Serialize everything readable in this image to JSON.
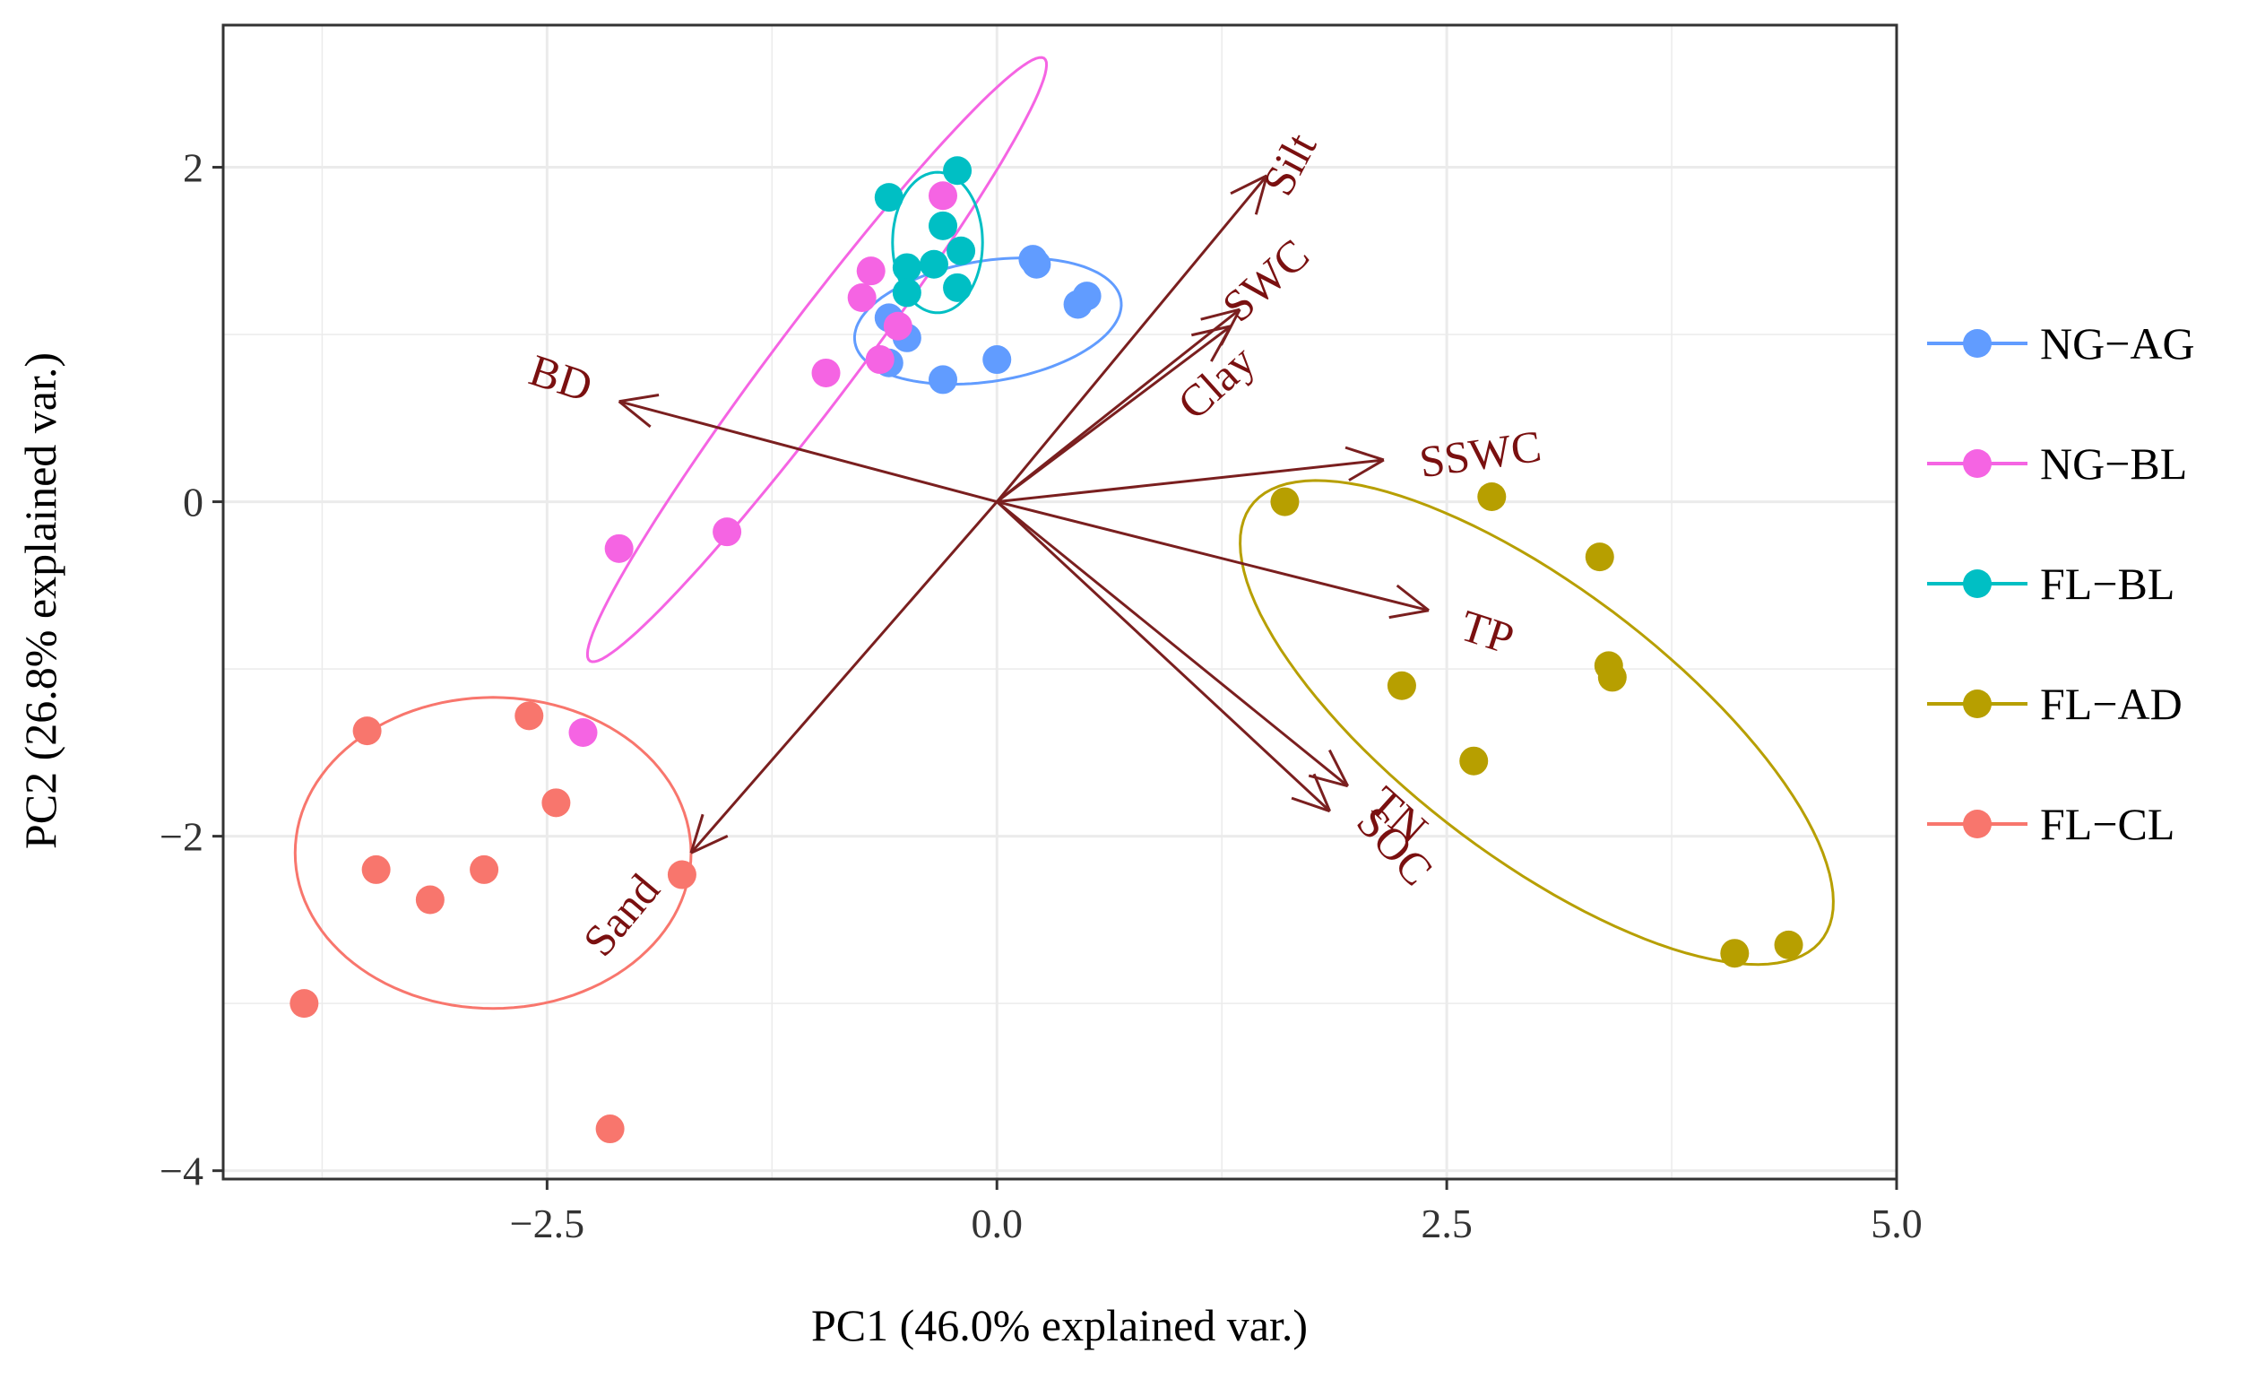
{
  "chart_data": {
    "type": "scatter",
    "title": "",
    "xlabel": "PC1 (46.0% explained var.)",
    "ylabel": "PC2 (26.8% explained var.)",
    "xlim": [
      -4.3,
      5.0
    ],
    "ylim": [
      -4.05,
      2.85
    ],
    "xticks": [
      -2.5,
      0.0,
      2.5,
      5.0
    ],
    "xtick_labels": [
      "−2.5",
      "0.0",
      "2.5",
      "5.0"
    ],
    "yticks": [
      -4,
      -2,
      0,
      2
    ],
    "ytick_labels": [
      "−4",
      "−2",
      "0",
      "2"
    ],
    "grid": true,
    "legend_position": "right",
    "series": [
      {
        "name": "NG−AG",
        "color": "#619cff",
        "points": [
          [
            -0.6,
            1.1
          ],
          [
            -0.5,
            0.98
          ],
          [
            -0.3,
            0.73
          ],
          [
            0.0,
            0.85
          ],
          [
            0.2,
            1.45
          ],
          [
            0.22,
            1.42
          ],
          [
            0.45,
            1.18
          ],
          [
            0.5,
            1.23
          ],
          [
            -0.6,
            0.83
          ]
        ],
        "ellipse": {
          "center": [
            -0.05,
            1.08
          ],
          "semi_axes": [
            0.75,
            0.36
          ],
          "angle_deg": 10
        }
      },
      {
        "name": "NG−BL",
        "color": "#f564e3",
        "points": [
          [
            -0.3,
            1.83
          ],
          [
            -0.7,
            1.38
          ],
          [
            -0.75,
            1.22
          ],
          [
            -0.55,
            1.05
          ],
          [
            -0.65,
            0.85
          ],
          [
            -0.95,
            0.77
          ],
          [
            -1.5,
            -0.18
          ],
          [
            -2.1,
            -0.28
          ],
          [
            -2.3,
            -1.38
          ]
        ],
        "ellipse": {
          "center": [
            -1.0,
            0.85
          ],
          "semi_axes": [
            2.2,
            0.23
          ],
          "angle_deg": 55
        }
      },
      {
        "name": "FL−BL",
        "color": "#00bfc4",
        "points": [
          [
            -0.6,
            1.82
          ],
          [
            -0.22,
            1.98
          ],
          [
            -0.3,
            1.65
          ],
          [
            -0.2,
            1.5
          ],
          [
            -0.5,
            1.4
          ],
          [
            -0.35,
            1.42
          ],
          [
            -0.22,
            1.28
          ],
          [
            -0.5,
            1.25
          ]
        ],
        "ellipse": {
          "center": [
            -0.33,
            1.55
          ],
          "semi_axes": [
            0.25,
            0.42
          ],
          "angle_deg": 0
        }
      },
      {
        "name": "FL−AD",
        "color": "#b79f00",
        "points": [
          [
            1.6,
            0.0
          ],
          [
            2.75,
            0.03
          ],
          [
            3.35,
            -0.33
          ],
          [
            3.4,
            -0.98
          ],
          [
            3.42,
            -1.05
          ],
          [
            2.25,
            -1.1
          ],
          [
            2.65,
            -1.55
          ],
          [
            4.1,
            -2.7
          ],
          [
            4.4,
            -2.65
          ]
        ],
        "ellipse": {
          "center": [
            3.0,
            -1.32
          ],
          "semi_axes": [
            2.05,
            0.78
          ],
          "angle_deg": -40
        }
      },
      {
        "name": "FL−CL",
        "color": "#f8766d",
        "points": [
          [
            -3.5,
            -1.37
          ],
          [
            -2.6,
            -1.28
          ],
          [
            -2.45,
            -1.8
          ],
          [
            -3.45,
            -2.2
          ],
          [
            -2.85,
            -2.2
          ],
          [
            -3.15,
            -2.38
          ],
          [
            -1.75,
            -2.23
          ],
          [
            -3.85,
            -3.0
          ],
          [
            -2.15,
            -3.75
          ]
        ],
        "ellipse": {
          "center": [
            -2.8,
            -2.1
          ],
          "semi_axes": [
            1.1,
            0.93
          ],
          "angle_deg": 0
        }
      }
    ],
    "loadings": [
      {
        "name": "Silt",
        "x": 1.5,
        "y": 1.95
      },
      {
        "name": "SWC",
        "x": 1.35,
        "y": 1.15
      },
      {
        "name": "Clay",
        "x": 1.3,
        "y": 1.05
      },
      {
        "name": "SSWC",
        "x": 2.15,
        "y": 0.25
      },
      {
        "name": "TP",
        "x": 2.4,
        "y": -0.65
      },
      {
        "name": "TN",
        "x": 1.95,
        "y": -1.7
      },
      {
        "name": "SOC",
        "x": 1.85,
        "y": -1.85
      },
      {
        "name": "BD",
        "x": -2.1,
        "y": 0.6
      },
      {
        "name": "Sand",
        "x": -1.7,
        "y": -2.1
      }
    ]
  }
}
